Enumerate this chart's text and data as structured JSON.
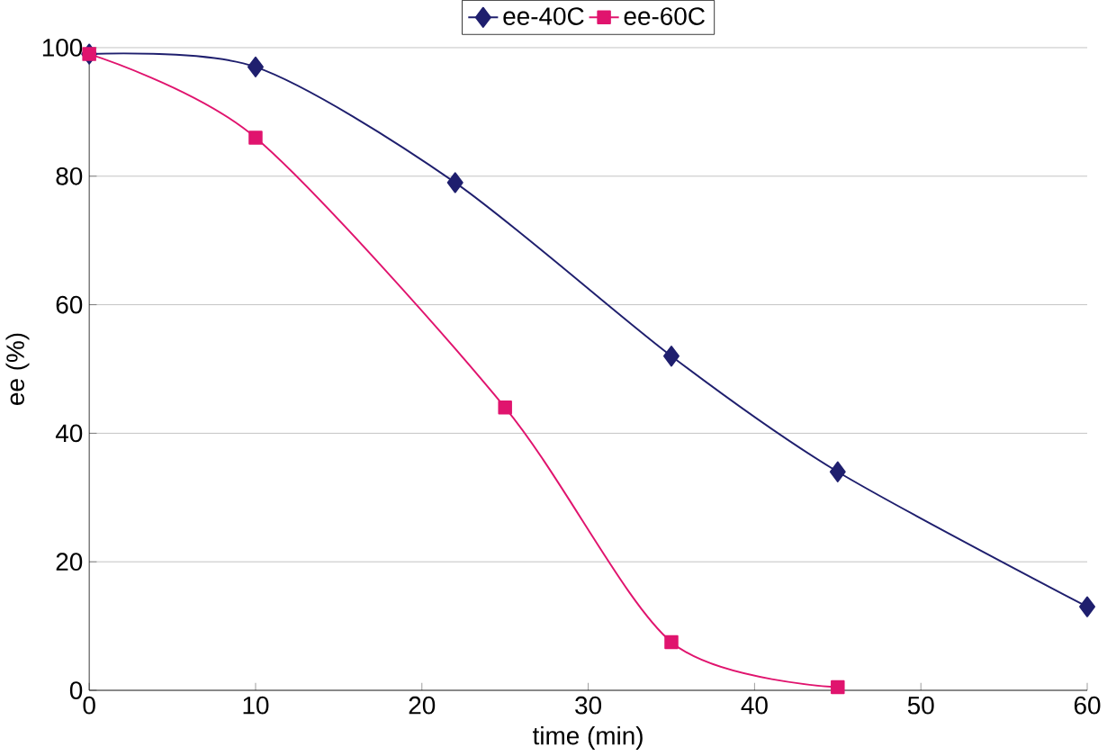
{
  "chart_data": {
    "type": "line",
    "xlabel": "time (min)",
    "ylabel": "ee  (%)",
    "xlim": [
      0,
      60
    ],
    "ylim": [
      0,
      100
    ],
    "xticks": [
      0,
      10,
      20,
      30,
      40,
      50,
      60
    ],
    "yticks": [
      0,
      20,
      40,
      60,
      80,
      100
    ],
    "grid": "y",
    "legend": "top",
    "series": [
      {
        "name": "ee-40C",
        "color": "#1f1f6e",
        "marker": "diamond",
        "x": [
          0,
          10,
          22,
          35,
          45,
          60
        ],
        "values": [
          99,
          97,
          79,
          52,
          34,
          13
        ]
      },
      {
        "name": "ee-60C",
        "color": "#e0146e",
        "marker": "square",
        "x": [
          0,
          10,
          25,
          35,
          45
        ],
        "values": [
          99,
          86,
          44,
          7.5,
          0.5
        ]
      }
    ]
  }
}
